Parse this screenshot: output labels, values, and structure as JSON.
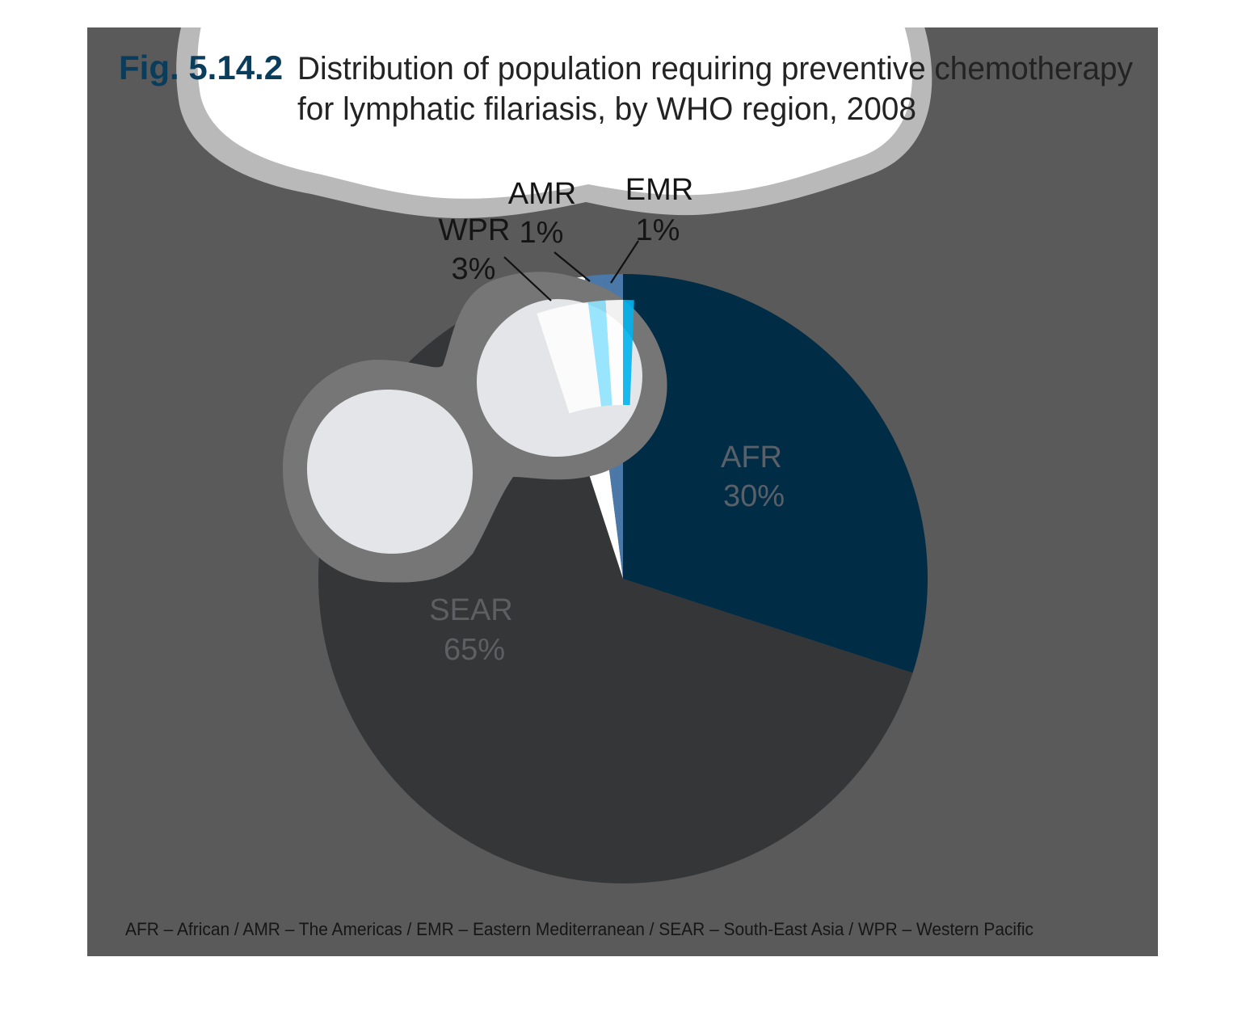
{
  "figure": {
    "number": "Fig. 5.14.2",
    "title_line1": "Distribution of population requiring preventive chemotherapy",
    "title_line2": "for lymphatic filariasis, by WHO region, 2008",
    "footnote": "AFR – African / AMR – The Americas / EMR – Eastern Mediterranean / SEAR – South-East Asia / WPR – Western Pacific"
  },
  "colors": {
    "panel": "#5a5a5a",
    "number": "#0a3d5c",
    "afr": "#002c46",
    "emr": "#4a78a8",
    "amr": "#4a78a8",
    "wpr": "#ffffff",
    "sear": "#353638",
    "highlight": "#00b4f0",
    "bubble": "#e4e5e8",
    "bubble_rim": "#b9b9b9"
  },
  "chart_data": {
    "type": "pie",
    "title": "Distribution of population requiring preventive chemotherapy for lymphatic filariasis, by WHO region, 2008",
    "slices": [
      {
        "region": "AFR",
        "percent_label": "30%",
        "value": 30
      },
      {
        "region": "SEAR",
        "percent_label": "65%",
        "value": 65
      },
      {
        "region": "WPR",
        "percent_label": "3%",
        "value": 3
      },
      {
        "region": "AMR",
        "percent_label": "1%",
        "value": 1
      },
      {
        "region": "EMR",
        "percent_label": "1%",
        "value": 1
      }
    ],
    "start": "12 o'clock",
    "direction": "clockwise"
  }
}
